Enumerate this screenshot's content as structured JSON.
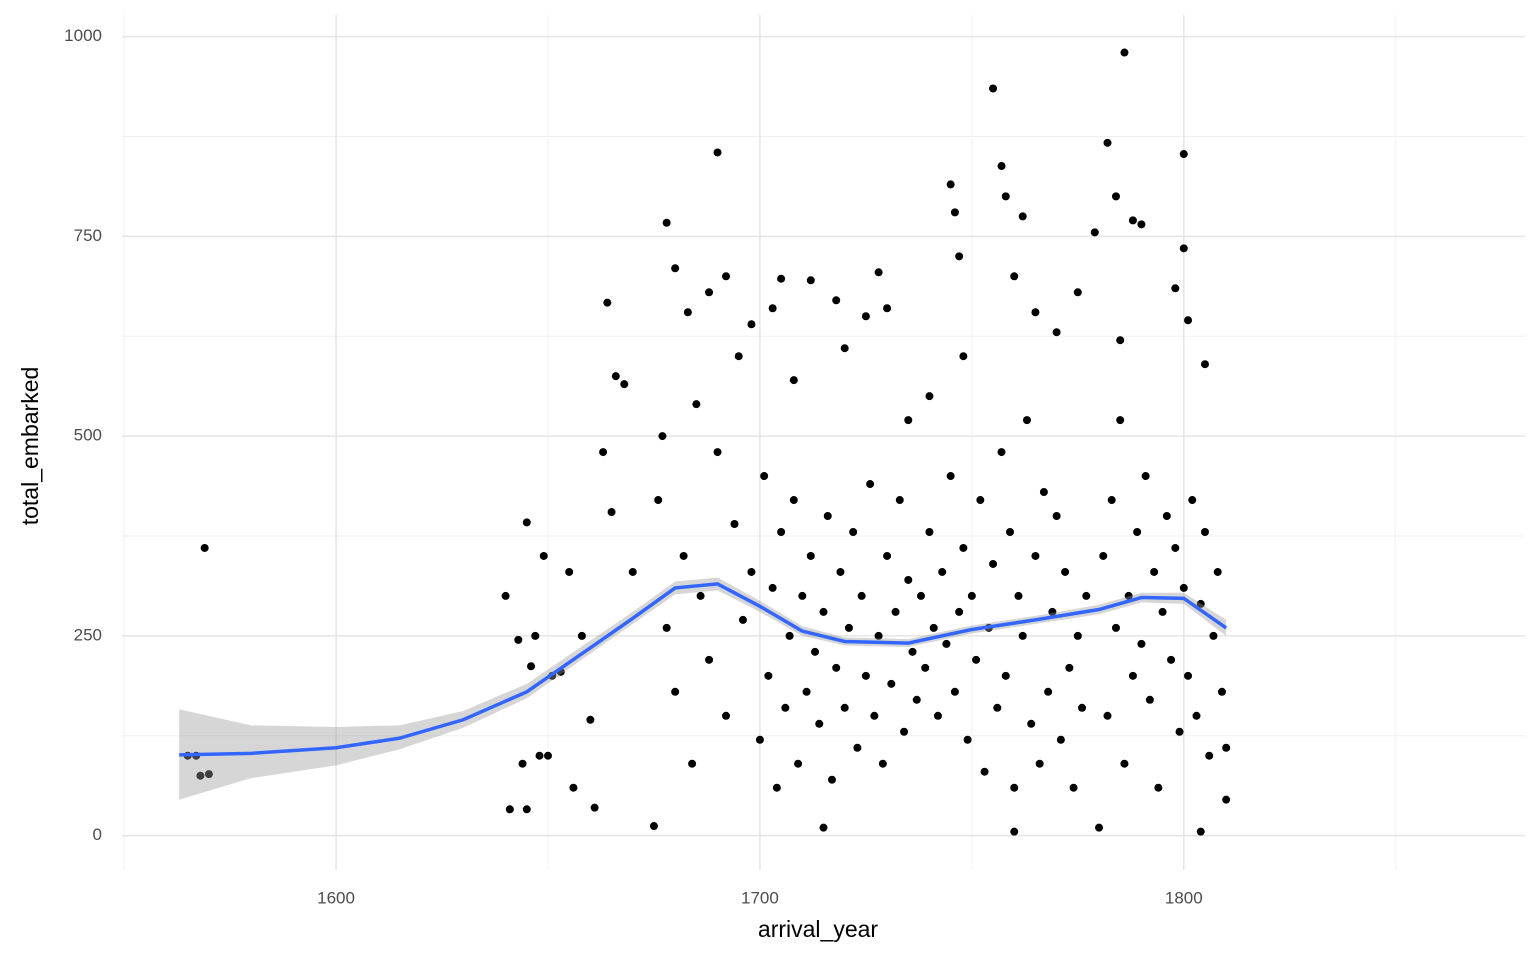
{
  "chart_data": {
    "type": "scatter",
    "xlabel": "arrival_year",
    "ylabel": "total_embarked",
    "xlim": [
      1549.5,
      1880.5
    ],
    "ylim": [
      -43,
      1027
    ],
    "xticks": [
      1600,
      1700,
      1800
    ],
    "yticks": [
      0,
      250,
      500,
      750,
      1000
    ],
    "minor_xticks": [
      1550,
      1650,
      1750,
      1850
    ],
    "minor_yticks": [
      125,
      375,
      625,
      875
    ],
    "grid": true,
    "color": "#000000",
    "x": [
      1565,
      1567,
      1569,
      1568,
      1570,
      1640,
      1641,
      1643,
      1644,
      1645,
      1645,
      1646,
      1647,
      1648,
      1649,
      1650,
      1651,
      1653,
      1655,
      1656,
      1658,
      1660,
      1661,
      1663,
      1664,
      1665,
      1666,
      1668,
      1670,
      1675,
      1677,
      1678,
      1680,
      1683,
      1685,
      1688,
      1690,
      1692,
      1695,
      1698,
      1703,
      1705,
      1708,
      1712,
      1715,
      1718,
      1720,
      1725,
      1728,
      1730,
      1735,
      1740,
      1745,
      1746,
      1747,
      1748,
      1755,
      1757,
      1758,
      1760,
      1762,
      1765,
      1770,
      1775,
      1779,
      1782,
      1784,
      1786,
      1788,
      1790,
      1798,
      1800,
      1800,
      1801,
      1805,
      1810,
      1810,
      1804,
      1780,
      1760,
      1676,
      1678,
      1680,
      1682,
      1684,
      1686,
      1688,
      1690,
      1692,
      1694,
      1696,
      1698,
      1700,
      1701,
      1702,
      1703,
      1704,
      1705,
      1706,
      1707,
      1708,
      1709,
      1710,
      1711,
      1712,
      1713,
      1714,
      1715,
      1716,
      1717,
      1718,
      1719,
      1720,
      1721,
      1722,
      1723,
      1724,
      1725,
      1726,
      1727,
      1728,
      1729,
      1730,
      1731,
      1732,
      1733,
      1734,
      1735,
      1736,
      1737,
      1738,
      1739,
      1740,
      1741,
      1742,
      1743,
      1744,
      1745,
      1746,
      1747,
      1748,
      1749,
      1750,
      1751,
      1752,
      1753,
      1754,
      1755,
      1756,
      1757,
      1758,
      1759,
      1760,
      1761,
      1762,
      1763,
      1764,
      1765,
      1766,
      1767,
      1768,
      1769,
      1770,
      1771,
      1772,
      1773,
      1774,
      1775,
      1776,
      1777,
      1781,
      1782,
      1783,
      1784,
      1785,
      1786,
      1787,
      1788,
      1789,
      1790,
      1791,
      1792,
      1793,
      1794,
      1795,
      1796,
      1797,
      1798,
      1799,
      1800,
      1801,
      1802,
      1803,
      1804,
      1805,
      1806,
      1807,
      1808,
      1809,
      1785
    ],
    "y": [
      100,
      100,
      360,
      75,
      77,
      300,
      33,
      245,
      90,
      392,
      33,
      212,
      250,
      100,
      350,
      100,
      200,
      205,
      330,
      60,
      250,
      145,
      35,
      480,
      667,
      405,
      575,
      565,
      330,
      12,
      500,
      767,
      710,
      655,
      540,
      680,
      855,
      700,
      600,
      640,
      660,
      697,
      570,
      695,
      10,
      670,
      610,
      650,
      705,
      660,
      520,
      550,
      815,
      780,
      725,
      600,
      935,
      838,
      800,
      700,
      775,
      655,
      630,
      680,
      755,
      867,
      800,
      980,
      770,
      765,
      685,
      853,
      735,
      645,
      590,
      45,
      110,
      5,
      10,
      5,
      420,
      260,
      180,
      350,
      90,
      300,
      220,
      480,
      150,
      390,
      270,
      330,
      120,
      450,
      200,
      310,
      60,
      380,
      160,
      250,
      420,
      90,
      300,
      180,
      350,
      230,
      140,
      280,
      400,
      70,
      210,
      330,
      160,
      260,
      380,
      110,
      300,
      200,
      440,
      150,
      250,
      90,
      350,
      190,
      280,
      420,
      130,
      320,
      230,
      170,
      300,
      210,
      380,
      260,
      150,
      330,
      240,
      450,
      180,
      280,
      360,
      120,
      300,
      220,
      420,
      80,
      260,
      340,
      160,
      480,
      200,
      380,
      60,
      300,
      250,
      520,
      140,
      350,
      90,
      430,
      180,
      280,
      400,
      120,
      330,
      210,
      60,
      250,
      160,
      300,
      350,
      150,
      420,
      260,
      520,
      90,
      300,
      200,
      380,
      240,
      450,
      170,
      330,
      60,
      280,
      400,
      220,
      360,
      130,
      310,
      200,
      420,
      150,
      290,
      380,
      100,
      250,
      330,
      180,
      620
    ],
    "smooth": {
      "color": "#3366ff",
      "band_color": "#999999",
      "x": [
        1563,
        1580,
        1600,
        1615,
        1630,
        1645,
        1660,
        1670,
        1680,
        1690,
        1700,
        1710,
        1720,
        1735,
        1750,
        1765,
        1780,
        1790,
        1800,
        1810
      ],
      "values": [
        101,
        103,
        110,
        122,
        145,
        180,
        235,
        272,
        310,
        315,
        287,
        256,
        243,
        241,
        258,
        270,
        283,
        298,
        297,
        260
      ],
      "lower": [
        45,
        72,
        88,
        108,
        135,
        172,
        228,
        265,
        302,
        307,
        280,
        250,
        238,
        236,
        253,
        265,
        277,
        292,
        290,
        250
      ],
      "upper": [
        158,
        138,
        136,
        138,
        156,
        190,
        244,
        280,
        318,
        323,
        294,
        262,
        248,
        246,
        263,
        275,
        289,
        304,
        304,
        270
      ]
    }
  }
}
